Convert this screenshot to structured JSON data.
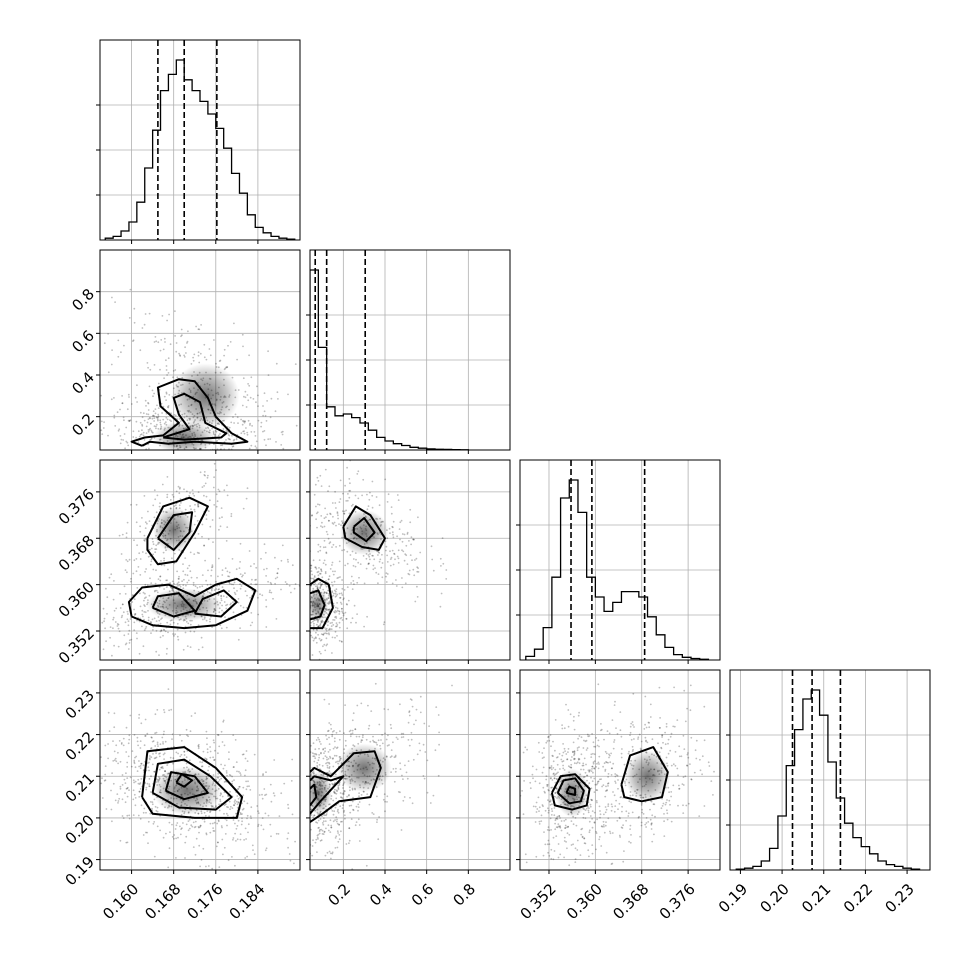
{
  "chart_data": {
    "type": "corner",
    "parameters": [
      {
        "index": 0,
        "range": [
          0.154,
          0.192
        ],
        "ticks": [
          0.16,
          0.168,
          0.176,
          0.184
        ],
        "tick_labels": [
          "0.160",
          "0.168",
          "0.176",
          "0.184"
        ],
        "quantiles": [
          0.165,
          0.17,
          0.1762
        ],
        "hist_bins": [
          0.155,
          0.1565,
          0.158,
          0.1595,
          0.161,
          0.1625,
          0.164,
          0.1655,
          0.167,
          0.1685,
          0.17,
          0.1715,
          0.173,
          0.1745,
          0.176,
          0.1775,
          0.179,
          0.1805,
          0.182,
          0.1835,
          0.185,
          0.1865,
          0.188,
          0.1895,
          0.191
        ],
        "hist_values": [
          0.01,
          0.02,
          0.05,
          0.1,
          0.21,
          0.4,
          0.61,
          0.83,
          0.92,
          1.0,
          0.89,
          0.83,
          0.77,
          0.7,
          0.62,
          0.51,
          0.37,
          0.26,
          0.14,
          0.07,
          0.04,
          0.02,
          0.01,
          0.005
        ]
      },
      {
        "index": 1,
        "range": [
          0.04,
          1.0
        ],
        "ticks": [
          0.2,
          0.4,
          0.6,
          0.8
        ],
        "tick_labels": [
          "0.2",
          "0.4",
          "0.6",
          "0.8"
        ],
        "quantiles": [
          0.065,
          0.12,
          0.305
        ],
        "hist_bins": [
          0.04,
          0.08,
          0.12,
          0.16,
          0.2,
          0.24,
          0.28,
          0.32,
          0.36,
          0.4,
          0.44,
          0.48,
          0.52,
          0.56,
          0.6,
          0.64,
          0.68,
          0.72,
          0.76,
          0.8
        ],
        "hist_values": [
          1.0,
          0.57,
          0.24,
          0.19,
          0.2,
          0.18,
          0.15,
          0.11,
          0.07,
          0.05,
          0.035,
          0.025,
          0.015,
          0.01,
          0.006,
          0.004,
          0.003,
          0.002,
          0.001
        ]
      },
      {
        "index": 2,
        "range": [
          0.347,
          0.3815
        ],
        "ticks": [
          0.352,
          0.36,
          0.368,
          0.376
        ],
        "tick_labels": [
          "0.352",
          "0.360",
          "0.368",
          "0.376"
        ],
        "quantiles": [
          0.3558,
          0.3594,
          0.3685
        ],
        "hist_bins": [
          0.348,
          0.3495,
          0.351,
          0.3525,
          0.354,
          0.3555,
          0.357,
          0.3585,
          0.36,
          0.3615,
          0.363,
          0.3645,
          0.366,
          0.3675,
          0.369,
          0.3705,
          0.372,
          0.3735,
          0.375,
          0.3765,
          0.378,
          0.3795
        ],
        "hist_values": [
          0.02,
          0.06,
          0.18,
          0.46,
          0.9,
          1.0,
          0.82,
          0.46,
          0.35,
          0.27,
          0.32,
          0.38,
          0.38,
          0.35,
          0.24,
          0.14,
          0.07,
          0.03,
          0.015,
          0.008,
          0.004
        ]
      },
      {
        "index": 3,
        "range": [
          0.1875,
          0.2355
        ],
        "ticks": [
          0.19,
          0.2,
          0.21,
          0.22,
          0.23
        ],
        "tick_labels": [
          "0.19",
          "0.20",
          "0.21",
          "0.22",
          "0.23"
        ],
        "quantiles": [
          0.2025,
          0.2072,
          0.214
        ],
        "hist_bins": [
          0.189,
          0.191,
          0.193,
          0.195,
          0.197,
          0.199,
          0.201,
          0.203,
          0.205,
          0.207,
          0.209,
          0.211,
          0.213,
          0.215,
          0.217,
          0.219,
          0.221,
          0.223,
          0.225,
          0.227,
          0.229,
          0.231,
          0.233
        ],
        "hist_values": [
          0.005,
          0.01,
          0.02,
          0.05,
          0.12,
          0.3,
          0.58,
          0.78,
          0.95,
          1.0,
          0.86,
          0.6,
          0.4,
          0.26,
          0.18,
          0.13,
          0.09,
          0.05,
          0.03,
          0.02,
          0.01,
          0.005
        ]
      }
    ],
    "grid": true,
    "show_titles": false
  }
}
